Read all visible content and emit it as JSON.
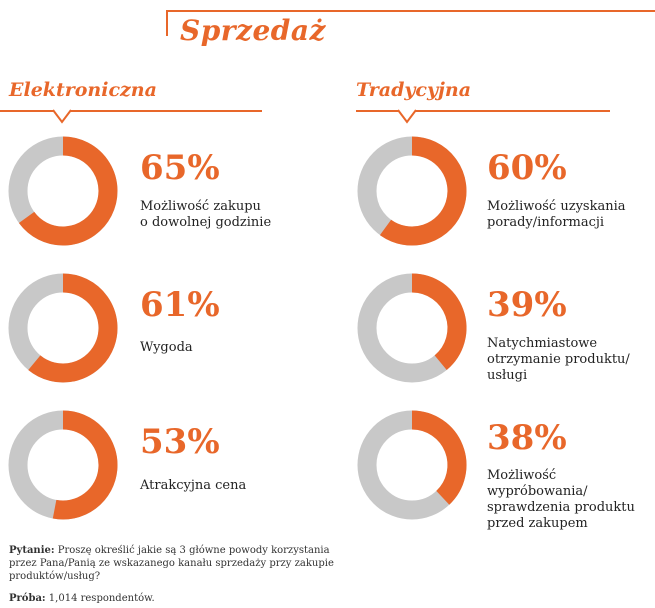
{
  "page": {
    "title": "Sprzedaż",
    "accent": "#e8672a",
    "track": "#c8c8c8"
  },
  "chart_data": {
    "type": "donut",
    "title": "Sprzedaż",
    "groups": [
      {
        "name": "Elektroniczna",
        "items": [
          {
            "value": 65,
            "pct_label": "65%",
            "label": "Możliwość zakupu\no dowolnej godzinie"
          },
          {
            "value": 61,
            "pct_label": "61%",
            "label": "Wygoda"
          },
          {
            "value": 53,
            "pct_label": "53%",
            "label": "Atrakcyjna cena"
          }
        ]
      },
      {
        "name": "Tradycyjna",
        "items": [
          {
            "value": 60,
            "pct_label": "60%",
            "label": "Możliwość uzyskania\nporady/informacji"
          },
          {
            "value": 39,
            "pct_label": "39%",
            "label": "Natychmiastowe\notrzymanie produktu/\nusługi"
          },
          {
            "value": 38,
            "pct_label": "38%",
            "label": "Możliwość wypróbowania/\nsprawdzenia produktu\nprzed zakupem"
          }
        ]
      }
    ]
  },
  "footer": {
    "question_label": "Pytanie:",
    "question_text": " Proszę określić jakie są 3 główne powody korzystania\nprzez Pana/Panią ze wskazanego kanału sprzedaży przy zakupie\nproduktów/usług?",
    "sample_label": "Próba:",
    "sample_text": " 1,014 respondentów."
  }
}
